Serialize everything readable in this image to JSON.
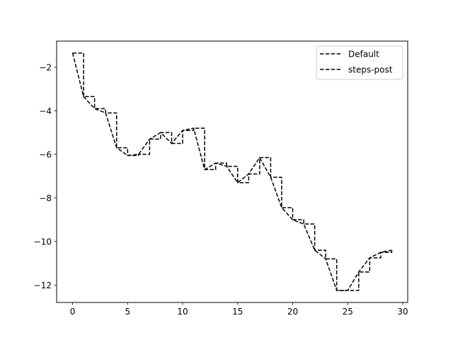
{
  "chart_data": {
    "type": "line",
    "title": "",
    "xlabel": "",
    "ylabel": "",
    "xlim": [
      -1.45,
      30.45
    ],
    "ylim": [
      -12.8,
      -0.8
    ],
    "xticks": [
      0,
      5,
      10,
      15,
      20,
      25,
      30
    ],
    "yticks": [
      -12,
      -10,
      -8,
      -6,
      -4,
      -2
    ],
    "xtick_labels": [
      "0",
      "5",
      "10",
      "15",
      "20",
      "25",
      "30"
    ],
    "ytick_labels": [
      "−12",
      "−10",
      "−8",
      "−6",
      "−4",
      "−2"
    ],
    "grid": false,
    "legend_position": "top-right",
    "x": [
      0,
      1,
      2,
      3,
      4,
      5,
      6,
      7,
      8,
      9,
      10,
      11,
      12,
      13,
      14,
      15,
      16,
      17,
      18,
      19,
      20,
      21,
      22,
      23,
      24,
      25,
      26,
      27,
      28,
      29
    ],
    "series": [
      {
        "name": "Default",
        "drawstyle": "default",
        "color": "#000000",
        "linestyle": "dashed",
        "values": [
          -1.35,
          -3.35,
          -3.9,
          -4.1,
          -5.7,
          -6.05,
          -6.0,
          -5.3,
          -5.0,
          -5.5,
          -4.9,
          -4.8,
          -6.7,
          -6.4,
          -6.55,
          -7.3,
          -6.9,
          -6.15,
          -7.05,
          -8.45,
          -9.0,
          -9.2,
          -10.4,
          -10.8,
          -12.25,
          -12.25,
          -11.4,
          -10.75,
          -10.5,
          -10.4
        ]
      },
      {
        "name": "steps-post",
        "drawstyle": "steps-post",
        "color": "#000000",
        "linestyle": "dashed",
        "values": [
          -1.35,
          -3.35,
          -3.9,
          -4.1,
          -5.7,
          -6.05,
          -6.0,
          -5.3,
          -5.0,
          -5.5,
          -4.9,
          -4.8,
          -6.7,
          -6.4,
          -6.55,
          -7.3,
          -6.9,
          -6.15,
          -7.05,
          -8.45,
          -9.0,
          -9.2,
          -10.4,
          -10.8,
          -12.25,
          -12.25,
          -11.4,
          -10.75,
          -10.5,
          -10.4
        ]
      }
    ]
  }
}
